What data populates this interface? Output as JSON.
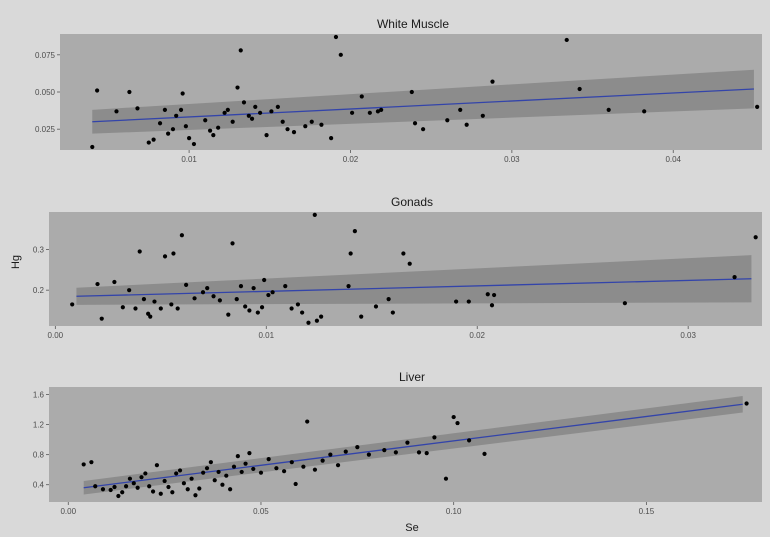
{
  "figure": {
    "xlabel": "Se",
    "ylabel": "Hg",
    "background": "#d9d9d9",
    "panel_bg": "#ababab",
    "ribbon_color": "#8c8c8c",
    "line_color": "#3344aa",
    "point_color": "#000000"
  },
  "chart_data": [
    {
      "type": "scatter",
      "title": "White Muscle",
      "xlabel": "",
      "ylabel": "",
      "xlim": [
        0.002,
        0.0455
      ],
      "ylim": [
        0.011,
        0.089
      ],
      "xticks": [
        0.01,
        0.02,
        0.03,
        0.04
      ],
      "xtick_labels": [
        "0.01",
        "0.02",
        "0.03",
        "0.04"
      ],
      "yticks": [
        0.025,
        0.05,
        0.075
      ],
      "ytick_labels": [
        "0.025",
        "0.050",
        "0.075"
      ],
      "grid": false,
      "fit": {
        "method": "linear",
        "x": [
          0.004,
          0.045
        ],
        "y": [
          0.03,
          0.052
        ],
        "ci_lower": [
          0.022,
          0.039
        ],
        "ci_upper": [
          0.038,
          0.065
        ]
      },
      "points": [
        [
          0.004,
          0.013
        ],
        [
          0.0043,
          0.051
        ],
        [
          0.0055,
          0.037
        ],
        [
          0.0063,
          0.05
        ],
        [
          0.0068,
          0.039
        ],
        [
          0.0075,
          0.016
        ],
        [
          0.0078,
          0.018
        ],
        [
          0.0082,
          0.029
        ],
        [
          0.0085,
          0.038
        ],
        [
          0.0087,
          0.022
        ],
        [
          0.009,
          0.025
        ],
        [
          0.0092,
          0.034
        ],
        [
          0.0095,
          0.038
        ],
        [
          0.0096,
          0.049
        ],
        [
          0.0098,
          0.027
        ],
        [
          0.01,
          0.019
        ],
        [
          0.0103,
          0.015
        ],
        [
          0.011,
          0.031
        ],
        [
          0.0113,
          0.024
        ],
        [
          0.0115,
          0.021
        ],
        [
          0.0118,
          0.026
        ],
        [
          0.0122,
          0.036
        ],
        [
          0.0124,
          0.038
        ],
        [
          0.0127,
          0.03
        ],
        [
          0.013,
          0.053
        ],
        [
          0.0132,
          0.078
        ],
        [
          0.0134,
          0.043
        ],
        [
          0.0137,
          0.034
        ],
        [
          0.0139,
          0.032
        ],
        [
          0.0141,
          0.04
        ],
        [
          0.0144,
          0.036
        ],
        [
          0.0148,
          0.021
        ],
        [
          0.0151,
          0.037
        ],
        [
          0.0155,
          0.04
        ],
        [
          0.0158,
          0.03
        ],
        [
          0.0161,
          0.025
        ],
        [
          0.0165,
          0.023
        ],
        [
          0.0172,
          0.027
        ],
        [
          0.0176,
          0.03
        ],
        [
          0.0182,
          0.028
        ],
        [
          0.0188,
          0.019
        ],
        [
          0.0191,
          0.087
        ],
        [
          0.0194,
          0.075
        ],
        [
          0.0201,
          0.036
        ],
        [
          0.0207,
          0.047
        ],
        [
          0.0212,
          0.036
        ],
        [
          0.0217,
          0.037
        ],
        [
          0.0219,
          0.038
        ],
        [
          0.0238,
          0.05
        ],
        [
          0.024,
          0.029
        ],
        [
          0.0245,
          0.025
        ],
        [
          0.026,
          0.031
        ],
        [
          0.0268,
          0.038
        ],
        [
          0.0272,
          0.028
        ],
        [
          0.0282,
          0.034
        ],
        [
          0.0288,
          0.057
        ],
        [
          0.0334,
          0.085
        ],
        [
          0.0342,
          0.052
        ],
        [
          0.036,
          0.038
        ],
        [
          0.0382,
          0.037
        ],
        [
          0.0452,
          0.04
        ]
      ]
    },
    {
      "type": "scatter",
      "title": "Gonads",
      "xlabel": "",
      "ylabel": "Hg",
      "xlim": [
        -0.0003,
        0.0335
      ],
      "ylim": [
        0.112,
        0.392
      ],
      "xticks": [
        0.0,
        0.01,
        0.02,
        0.03
      ],
      "xtick_labels": [
        "0.00",
        "0.01",
        "0.02",
        "0.03"
      ],
      "yticks": [
        0.2,
        0.3
      ],
      "ytick_labels": [
        "0.2",
        "0.3"
      ],
      "grid": false,
      "fit": {
        "method": "linear",
        "x": [
          0.001,
          0.033
        ],
        "y": [
          0.185,
          0.228
        ],
        "ci_lower": [
          0.164,
          0.17
        ],
        "ci_upper": [
          0.206,
          0.286
        ]
      },
      "points": [
        [
          0.0008,
          0.165
        ],
        [
          0.002,
          0.215
        ],
        [
          0.0022,
          0.13
        ],
        [
          0.0028,
          0.22
        ],
        [
          0.0032,
          0.158
        ],
        [
          0.0035,
          0.2
        ],
        [
          0.0038,
          0.155
        ],
        [
          0.004,
          0.295
        ],
        [
          0.0042,
          0.178
        ],
        [
          0.0044,
          0.142
        ],
        [
          0.0045,
          0.135
        ],
        [
          0.0047,
          0.172
        ],
        [
          0.005,
          0.155
        ],
        [
          0.0052,
          0.283
        ],
        [
          0.0055,
          0.165
        ],
        [
          0.0056,
          0.29
        ],
        [
          0.0058,
          0.155
        ],
        [
          0.006,
          0.335
        ],
        [
          0.0062,
          0.213
        ],
        [
          0.0066,
          0.18
        ],
        [
          0.007,
          0.195
        ],
        [
          0.0072,
          0.205
        ],
        [
          0.0075,
          0.185
        ],
        [
          0.0078,
          0.175
        ],
        [
          0.0082,
          0.14
        ],
        [
          0.0084,
          0.315
        ],
        [
          0.0086,
          0.178
        ],
        [
          0.0088,
          0.21
        ],
        [
          0.009,
          0.16
        ],
        [
          0.0092,
          0.15
        ],
        [
          0.0094,
          0.205
        ],
        [
          0.0096,
          0.145
        ],
        [
          0.0098,
          0.158
        ],
        [
          0.0099,
          0.225
        ],
        [
          0.0101,
          0.188
        ],
        [
          0.0103,
          0.195
        ],
        [
          0.0109,
          0.21
        ],
        [
          0.0112,
          0.155
        ],
        [
          0.0115,
          0.165
        ],
        [
          0.0117,
          0.145
        ],
        [
          0.012,
          0.12
        ],
        [
          0.0123,
          0.385
        ],
        [
          0.0124,
          0.125
        ],
        [
          0.0126,
          0.135
        ],
        [
          0.0139,
          0.21
        ],
        [
          0.014,
          0.29
        ],
        [
          0.0142,
          0.345
        ],
        [
          0.0145,
          0.135
        ],
        [
          0.0152,
          0.16
        ],
        [
          0.0158,
          0.178
        ],
        [
          0.016,
          0.145
        ],
        [
          0.0165,
          0.29
        ],
        [
          0.0168,
          0.265
        ],
        [
          0.019,
          0.172
        ],
        [
          0.0196,
          0.172
        ],
        [
          0.0205,
          0.19
        ],
        [
          0.0207,
          0.163
        ],
        [
          0.0208,
          0.188
        ],
        [
          0.027,
          0.168
        ],
        [
          0.0322,
          0.232
        ],
        [
          0.0332,
          0.33
        ]
      ]
    },
    {
      "type": "scatter",
      "title": "Liver",
      "xlabel": "Se",
      "ylabel": "",
      "xlim": [
        -0.005,
        0.18
      ],
      "ylim": [
        0.17,
        1.7
      ],
      "xticks": [
        0.0,
        0.05,
        0.1,
        0.15
      ],
      "xtick_labels": [
        "0.00",
        "0.05",
        "0.10",
        "0.15"
      ],
      "yticks": [
        0.4,
        0.8,
        1.2,
        1.6
      ],
      "ytick_labels": [
        "0.4",
        "0.8",
        "1.2",
        "1.6"
      ],
      "grid": false,
      "fit": {
        "method": "linear",
        "x": [
          0.004,
          0.175
        ],
        "y": [
          0.36,
          1.47
        ],
        "ci_lower": [
          0.27,
          1.36
        ],
        "ci_upper": [
          0.45,
          1.58
        ]
      },
      "points": [
        [
          0.004,
          0.67
        ],
        [
          0.006,
          0.7
        ],
        [
          0.007,
          0.38
        ],
        [
          0.009,
          0.34
        ],
        [
          0.011,
          0.33
        ],
        [
          0.012,
          0.37
        ],
        [
          0.013,
          0.25
        ],
        [
          0.014,
          0.3
        ],
        [
          0.015,
          0.38
        ],
        [
          0.016,
          0.48
        ],
        [
          0.017,
          0.42
        ],
        [
          0.018,
          0.36
        ],
        [
          0.019,
          0.5
        ],
        [
          0.02,
          0.55
        ],
        [
          0.021,
          0.38
        ],
        [
          0.022,
          0.31
        ],
        [
          0.023,
          0.66
        ],
        [
          0.024,
          0.28
        ],
        [
          0.025,
          0.45
        ],
        [
          0.026,
          0.37
        ],
        [
          0.027,
          0.3
        ],
        [
          0.028,
          0.55
        ],
        [
          0.029,
          0.59
        ],
        [
          0.03,
          0.42
        ],
        [
          0.031,
          0.34
        ],
        [
          0.032,
          0.48
        ],
        [
          0.033,
          0.26
        ],
        [
          0.034,
          0.35
        ],
        [
          0.035,
          0.56
        ],
        [
          0.036,
          0.62
        ],
        [
          0.037,
          0.7
        ],
        [
          0.038,
          0.46
        ],
        [
          0.039,
          0.57
        ],
        [
          0.04,
          0.4
        ],
        [
          0.041,
          0.52
        ],
        [
          0.042,
          0.34
        ],
        [
          0.043,
          0.64
        ],
        [
          0.044,
          0.78
        ],
        [
          0.045,
          0.57
        ],
        [
          0.046,
          0.68
        ],
        [
          0.047,
          0.82
        ],
        [
          0.048,
          0.61
        ],
        [
          0.05,
          0.56
        ],
        [
          0.052,
          0.74
        ],
        [
          0.054,
          0.62
        ],
        [
          0.056,
          0.58
        ],
        [
          0.058,
          0.7
        ],
        [
          0.059,
          0.41
        ],
        [
          0.061,
          0.64
        ],
        [
          0.062,
          1.24
        ],
        [
          0.064,
          0.6
        ],
        [
          0.066,
          0.72
        ],
        [
          0.068,
          0.8
        ],
        [
          0.07,
          0.66
        ],
        [
          0.072,
          0.84
        ],
        [
          0.075,
          0.9
        ],
        [
          0.078,
          0.8
        ],
        [
          0.082,
          0.86
        ],
        [
          0.085,
          0.83
        ],
        [
          0.088,
          0.96
        ],
        [
          0.091,
          0.83
        ],
        [
          0.093,
          0.82
        ],
        [
          0.095,
          1.03
        ],
        [
          0.098,
          0.48
        ],
        [
          0.1,
          1.3
        ],
        [
          0.101,
          1.22
        ],
        [
          0.104,
          0.99
        ],
        [
          0.108,
          0.81
        ],
        [
          0.176,
          1.48
        ]
      ]
    }
  ]
}
